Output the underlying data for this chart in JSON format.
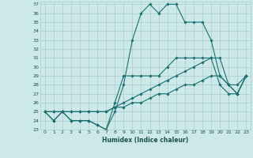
{
  "xlabel": "Humidex (Indice chaleur)",
  "background_color": "#cce8e8",
  "grid_color": "#aacccc",
  "line_color": "#1a7070",
  "xlim": [
    -0.5,
    23.5
  ],
  "ylim": [
    23,
    37.3
  ],
  "xticks": [
    0,
    1,
    2,
    3,
    4,
    5,
    6,
    7,
    8,
    9,
    10,
    11,
    12,
    13,
    14,
    15,
    16,
    17,
    18,
    19,
    20,
    21,
    22,
    23
  ],
  "yticks": [
    23,
    24,
    25,
    26,
    27,
    28,
    29,
    30,
    31,
    32,
    33,
    34,
    35,
    36,
    37
  ],
  "lines": [
    [
      25,
      24,
      25,
      24,
      24,
      24,
      23.5,
      23,
      25,
      28,
      33,
      36,
      37,
      36,
      37,
      37,
      35,
      35,
      35,
      33,
      29,
      28,
      28,
      29
    ],
    [
      25,
      24,
      25,
      24,
      24,
      24,
      23.5,
      23,
      26,
      29,
      29,
      29,
      29,
      29,
      30,
      31,
      31,
      31,
      31,
      31,
      28,
      27,
      27,
      29
    ],
    [
      25,
      25,
      25,
      25,
      25,
      25,
      25,
      25,
      25.5,
      26,
      26.5,
      27,
      27.5,
      28,
      28.5,
      29,
      29.5,
      30,
      30.5,
      31,
      31,
      28,
      27,
      29
    ],
    [
      25,
      25,
      25,
      25,
      25,
      25,
      25,
      25,
      25.5,
      25.5,
      26,
      26,
      26.5,
      27,
      27,
      27.5,
      28,
      28,
      28.5,
      29,
      29,
      28,
      27,
      29
    ]
  ]
}
